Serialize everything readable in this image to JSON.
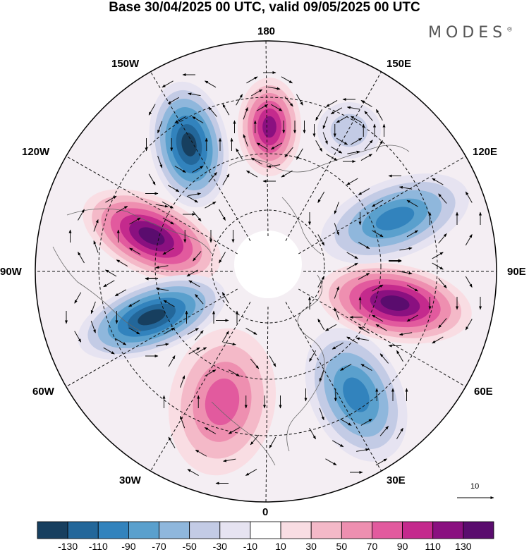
{
  "title": "Base 30/04/2025 00 UTC, valid 09/05/2025 00 UTC",
  "brand": {
    "name": "MODES",
    "mark": "®"
  },
  "longitude_labels": {
    "lon_180": "180",
    "lon_150e": "150E",
    "lon_120e": "120E",
    "lon_90e": "90E",
    "lon_60e": "60E",
    "lon_30e": "30E",
    "lon_0": "0",
    "lon_30w": "30W",
    "lon_60w": "60W",
    "lon_90w": "90W",
    "lon_120w": "120W",
    "lon_150w": "150W"
  },
  "vector_scale": {
    "label": "10"
  },
  "colorbar": {
    "colors": [
      "#173f5f",
      "#23679a",
      "#3283bd",
      "#5aa0cd",
      "#8fb7dc",
      "#c3cbe5",
      "#e6e3f1",
      "#ffffff",
      "#f9dde3",
      "#f4b9c8",
      "#ee8fb0",
      "#e25a9e",
      "#c42a8d",
      "#8a1080",
      "#5a0c6e"
    ],
    "ticks": [
      "-130",
      "-110",
      "-90",
      "-70",
      "-50",
      "-30",
      "-10",
      "10",
      "30",
      "50",
      "70",
      "90",
      "110",
      "130"
    ]
  }
}
